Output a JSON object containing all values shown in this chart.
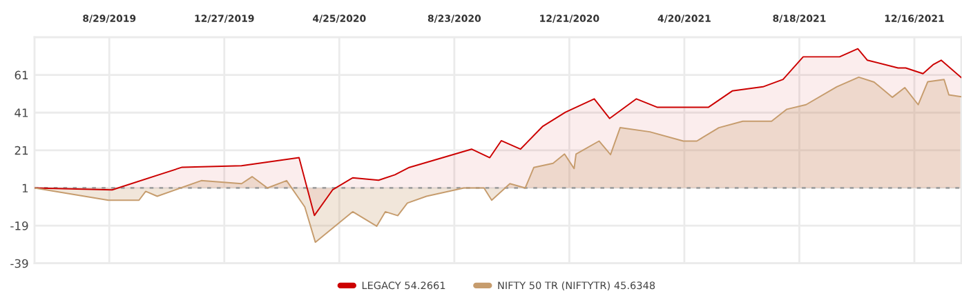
{
  "chart_data": {
    "type": "area",
    "xlim": [
      "2019-06-12",
      "2022-02-03"
    ],
    "xticks": [
      {
        "value": "2019-08-29",
        "label": "8/29/2019"
      },
      {
        "value": "2019-12-27",
        "label": "12/27/2019"
      },
      {
        "value": "2020-04-25",
        "label": "4/25/2020"
      },
      {
        "value": "2020-08-23",
        "label": "8/23/2020"
      },
      {
        "value": "2020-12-21",
        "label": "12/21/2020"
      },
      {
        "value": "2021-04-20",
        "label": "4/20/2021"
      },
      {
        "value": "2021-08-18",
        "label": "8/18/2021"
      },
      {
        "value": "2021-12-16",
        "label": "12/16/2021"
      }
    ],
    "ylim": [
      -39,
      81
    ],
    "yticks": [
      -39,
      -19,
      1,
      21,
      41,
      61
    ],
    "grid": true,
    "legend": "bottom",
    "marker": "none",
    "line_style": "solid",
    "ref_lines": [
      {
        "axis": "y",
        "value": 1,
        "color": "#a0a0a0",
        "line_style": "dotted"
      }
    ],
    "series": [
      {
        "name": "LEGACY 54.2661",
        "color": "#cc0000",
        "x": [
          "2019-06-12",
          "2019-09-01",
          "2019-11-13",
          "2020-01-14",
          "2020-03-14",
          "2020-03-30",
          "2020-04-18",
          "2020-05-09",
          "2020-06-05",
          "2020-06-22",
          "2020-07-07",
          "2020-09-10",
          "2020-09-29",
          "2020-10-11",
          "2020-10-31",
          "2020-11-23",
          "2020-12-17",
          "2021-01-16",
          "2021-02-01",
          "2021-03-01",
          "2021-03-23",
          "2021-05-15",
          "2021-06-09",
          "2021-07-11",
          "2021-08-01",
          "2021-08-22",
          "2021-09-29",
          "2021-10-18",
          "2021-10-28",
          "2021-11-29",
          "2021-12-07",
          "2021-12-25",
          "2022-01-05",
          "2022-01-13",
          "2022-02-03"
        ],
        "values": [
          1,
          0,
          12,
          12.8,
          17.1,
          -13.6,
          0,
          6.4,
          5.1,
          8,
          11.9,
          21.6,
          17.1,
          26.1,
          21.6,
          33.6,
          41.2,
          48.3,
          37.9,
          48.3,
          43.8,
          43.8,
          52.5,
          54.7,
          58.6,
          70.6,
          70.6,
          74.9,
          68.8,
          64.7,
          64.7,
          61.7,
          66.6,
          68.8,
          59.6
        ]
      },
      {
        "name": "NIFTY 50 TR (NIFTYTR) 45.6348",
        "color": "#c69c6d",
        "x": [
          "2019-06-12",
          "2019-08-28",
          "2019-09-29",
          "2019-10-06",
          "2019-10-18",
          "2019-12-03",
          "2020-01-14",
          "2020-01-25",
          "2020-02-10",
          "2020-03-01",
          "2020-03-20",
          "2020-03-31",
          "2020-05-09",
          "2020-06-03",
          "2020-06-12",
          "2020-06-25",
          "2020-07-05",
          "2020-07-25",
          "2020-09-02",
          "2020-09-23",
          "2020-10-01",
          "2020-10-20",
          "2020-11-05",
          "2020-11-14",
          "2020-12-04",
          "2020-12-16",
          "2020-12-26",
          "2020-12-28",
          "2021-01-21",
          "2021-02-02",
          "2021-02-12",
          "2021-03-15",
          "2021-04-19",
          "2021-05-03",
          "2021-05-26",
          "2021-06-20",
          "2021-07-20",
          "2021-08-05",
          "2021-08-25",
          "2021-09-26",
          "2021-10-19",
          "2021-11-04",
          "2021-11-23",
          "2021-12-06",
          "2021-12-20",
          "2021-12-30",
          "2022-01-16",
          "2022-01-21",
          "2022-02-03"
        ],
        "values": [
          1,
          -5.5,
          -5.5,
          -0.8,
          -3.4,
          4.9,
          3.3,
          7,
          1,
          4.9,
          -9.1,
          -27.8,
          -11.6,
          -19.3,
          -11.6,
          -13.7,
          -7,
          -3.4,
          1,
          1,
          -5.5,
          3.3,
          1,
          11.9,
          14.1,
          19,
          11.3,
          19,
          25.9,
          18.7,
          33,
          30.8,
          25.9,
          25.9,
          33,
          36.4,
          36.4,
          42.8,
          45.2,
          54.7,
          59.8,
          57.2,
          49.1,
          54.3,
          45.2,
          57.4,
          58.6,
          50.4,
          49.4
        ]
      }
    ]
  }
}
